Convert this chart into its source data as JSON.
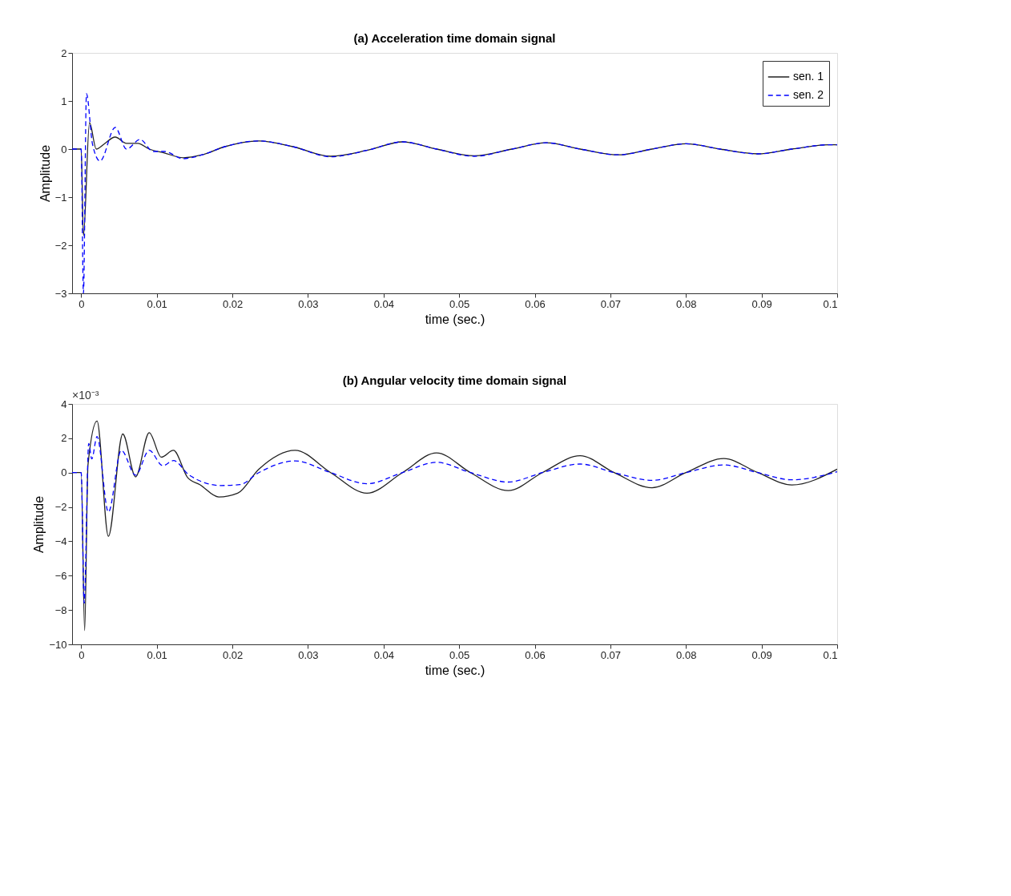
{
  "chart_data": [
    {
      "type": "line",
      "title": "(a) Acceleration time domain signal",
      "xlabel": "time (sec.)",
      "ylabel": "Amplitude",
      "xlim": [
        -0.0012,
        0.1
      ],
      "xticks": [
        0,
        0.01,
        0.02,
        0.03,
        0.04,
        0.05,
        0.06,
        0.07,
        0.08,
        0.09,
        0.1
      ],
      "ylim": [
        -3,
        2
      ],
      "yticks": [
        -3,
        -2,
        -1,
        0,
        1,
        2
      ],
      "grid": false,
      "legend": "top right",
      "series": [
        {
          "name": "sen. 1",
          "color": "#222222",
          "line_style": "solid",
          "x": [
            -0.0012,
            0,
            0.0003,
            0.0011,
            0.002,
            0.003,
            0.0045,
            0.006,
            0.0075,
            0.009,
            0.011,
            0.0135,
            0.016,
            0.019,
            0.0235,
            0.028,
            0.033,
            0.038,
            0.0425,
            0.047,
            0.052,
            0.057,
            0.0615,
            0.066,
            0.071,
            0.0755,
            0.08,
            0.0845,
            0.0895,
            0.094,
            0.099,
            0.1
          ],
          "values": [
            0,
            0,
            -1.8,
            0.55,
            0.0,
            0.1,
            0.25,
            0.12,
            0.12,
            0.0,
            -0.08,
            -0.18,
            -0.12,
            0.05,
            0.17,
            0.05,
            -0.15,
            -0.02,
            0.15,
            0.0,
            -0.14,
            0.0,
            0.13,
            0.0,
            -0.12,
            0.0,
            0.11,
            0.0,
            -0.1,
            0.0,
            0.09,
            0.09
          ]
        },
        {
          "name": "sen. 2",
          "color": "#0000ff",
          "line_style": "dashed",
          "x": [
            -0.0012,
            0,
            0.0003,
            0.0007,
            0.0015,
            0.0025,
            0.0045,
            0.006,
            0.0078,
            0.0095,
            0.011,
            0.0135,
            0.016,
            0.019,
            0.0235,
            0.028,
            0.033,
            0.038,
            0.0425,
            0.047,
            0.052,
            0.057,
            0.0615,
            0.066,
            0.071,
            0.0755,
            0.08,
            0.0845,
            0.0895,
            0.094,
            0.099,
            0.1
          ],
          "values": [
            0,
            0,
            -3.0,
            1.15,
            0.1,
            -0.25,
            0.45,
            0.0,
            0.2,
            -0.05,
            -0.05,
            -0.2,
            -0.12,
            0.05,
            0.17,
            0.05,
            -0.16,
            -0.02,
            0.15,
            0.0,
            -0.15,
            0.0,
            0.13,
            0.0,
            -0.12,
            0.0,
            0.11,
            0.0,
            -0.1,
            0.0,
            0.09,
            0.09
          ]
        }
      ]
    },
    {
      "type": "line",
      "title": "(b) Angular velocity time domain signal",
      "xlabel": "time (sec.)",
      "ylabel": "Amplitude",
      "annotations": [
        "×10⁻³"
      ],
      "xlim": [
        -0.0012,
        0.1
      ],
      "xticks": [
        0,
        0.01,
        0.02,
        0.03,
        0.04,
        0.05,
        0.06,
        0.07,
        0.08,
        0.09,
        0.1
      ],
      "ylim": [
        -10,
        4
      ],
      "yticks": [
        -10,
        -8,
        -6,
        -4,
        -2,
        0,
        2,
        4
      ],
      "grid": false,
      "legend": "top right",
      "series": [
        {
          "name": "sen. 1",
          "color": "#222222",
          "line_style": "solid",
          "x": [
            -0.0012,
            0,
            0.00046,
            0.0009,
            0.0021,
            0.0036,
            0.0055,
            0.0072,
            0.009,
            0.0106,
            0.0122,
            0.0141,
            0.0157,
            0.0182,
            0.0207,
            0.0235,
            0.0283,
            0.033,
            0.0378,
            0.0425,
            0.047,
            0.0515,
            0.0565,
            0.061,
            0.066,
            0.0705,
            0.0755,
            0.08,
            0.085,
            0.0895,
            0.094,
            0.1
          ],
          "values": [
            0,
            0,
            -9.2,
            0.45,
            3.0,
            -3.7,
            2.25,
            -0.25,
            2.33,
            0.9,
            1.3,
            -0.3,
            -0.7,
            -1.42,
            -1.2,
            0.2,
            1.3,
            0,
            -1.2,
            0,
            1.15,
            0,
            -1.05,
            0,
            0.98,
            0,
            -0.88,
            0,
            0.82,
            0,
            -0.72,
            0.2
          ]
        },
        {
          "name": "sen. 2",
          "color": "#0000ff",
          "line_style": "dashed",
          "x": [
            -0.0012,
            0,
            0.0004,
            0.001,
            0.0014,
            0.0021,
            0.0036,
            0.0053,
            0.0072,
            0.009,
            0.0108,
            0.0122,
            0.0143,
            0.0185,
            0.021,
            0.0235,
            0.0283,
            0.033,
            0.0378,
            0.0425,
            0.047,
            0.0515,
            0.0565,
            0.061,
            0.066,
            0.0705,
            0.0755,
            0.08,
            0.085,
            0.0895,
            0.094,
            0.1
          ],
          "values": [
            0,
            0,
            -7.6,
            1.7,
            0.8,
            2.1,
            -2.3,
            1.3,
            -0.15,
            1.3,
            0.4,
            0.7,
            -0.15,
            -0.75,
            -0.7,
            0,
            0.68,
            0,
            -0.65,
            0,
            0.6,
            0,
            -0.55,
            0,
            0.5,
            0,
            -0.45,
            0,
            0.45,
            0,
            -0.42,
            0.05
          ]
        }
      ]
    }
  ]
}
